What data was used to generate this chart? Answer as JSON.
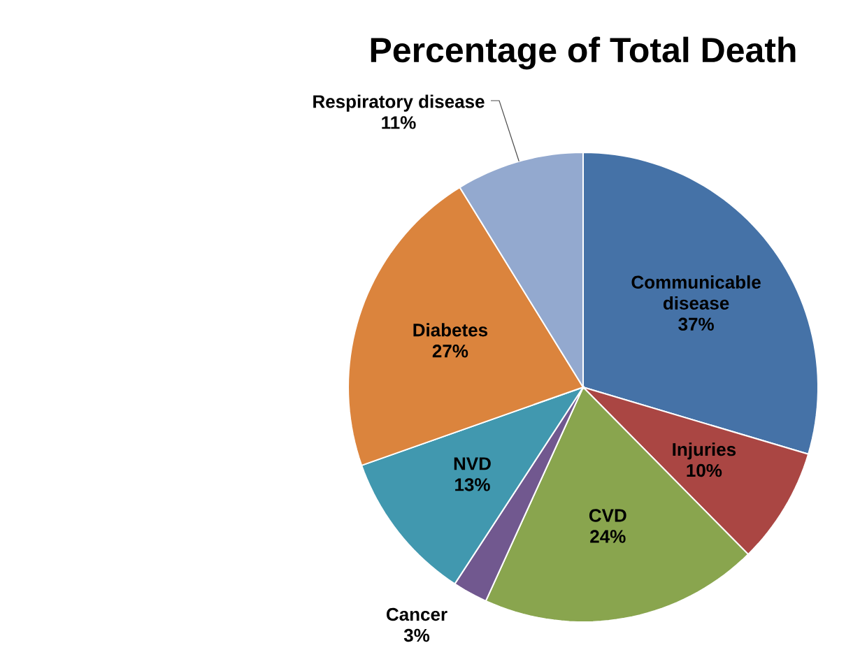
{
  "chart_data": {
    "type": "pie",
    "title": "Percentage of Total Death",
    "categories": [
      "Communicable disease",
      "Injuries",
      "CVD",
      "Cancer",
      "NVD",
      "Diabetes",
      "Respiratory disease"
    ],
    "values": [
      37,
      10,
      24,
      3,
      13,
      27,
      11
    ],
    "value_labels": [
      "37%",
      "10%",
      "24%",
      "3%",
      "13%",
      "27%",
      "11%"
    ],
    "colors": [
      "#4572a7",
      "#aa4643",
      "#89a54e",
      "#71588f",
      "#4198af",
      "#db843d",
      "#93a9cf"
    ]
  }
}
